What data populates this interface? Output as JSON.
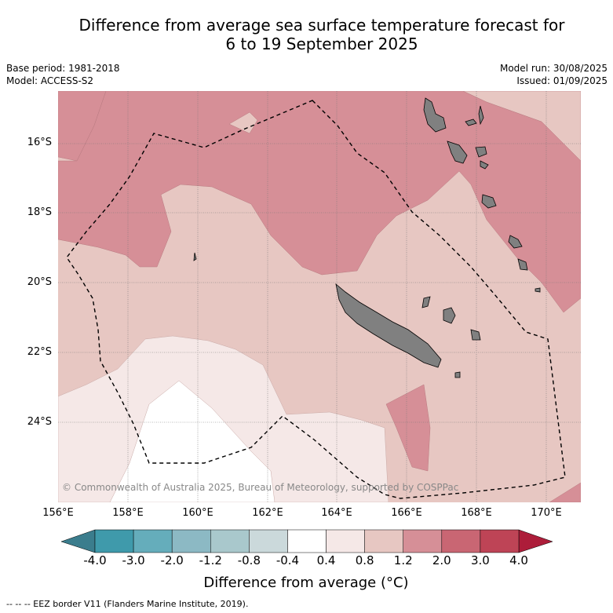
{
  "title": {
    "line1": "Difference from average sea surface temperature forecast for",
    "line2": "6 to 19 September 2025"
  },
  "meta": {
    "base_period": "Base period: 1981-2018",
    "model": "Model: ACCESS-S2",
    "model_run": "Model run: 30/08/2025",
    "issued": "Issued: 01/09/2025"
  },
  "map": {
    "lat_labels": [
      "16°S",
      "18°S",
      "20°S",
      "22°S",
      "24°S"
    ],
    "lon_labels": [
      "156°E",
      "158°E",
      "160°E",
      "162°E",
      "164°E",
      "166°E",
      "168°E",
      "170°E"
    ],
    "copyright": "© Commonwealth of Australia 2025, Bureau of Meteorology, supported by COSPPac",
    "colors": {
      "land": "#808080",
      "anom_0_4_0_8": "#f5e8e7",
      "anom_0_8_1_2": "#e7c7c2",
      "anom_1_2_2_0": "#d68f97",
      "anom_n0_4_0_4": "#ffffff"
    }
  },
  "colorbar": {
    "labels": [
      "-4.0",
      "-3.0",
      "-2.0",
      "-1.2",
      "-0.8",
      "-0.4",
      "0.4",
      "0.8",
      "1.2",
      "2.0",
      "3.0",
      "4.0"
    ],
    "colors": [
      "#3f9aab",
      "#65adbb",
      "#8cb9c4",
      "#a9c8cc",
      "#cbd9db",
      "#ffffff",
      "#f5e8e7",
      "#e7c7c2",
      "#d68f97",
      "#c96673",
      "#be4456"
    ],
    "under_color": "#3b7d8d",
    "over_color": "#ad1d3a",
    "title": "Difference from average (°C)"
  },
  "footer": "-- -- -- EEZ border V11 (Flanders Marine Institute, 2019)."
}
